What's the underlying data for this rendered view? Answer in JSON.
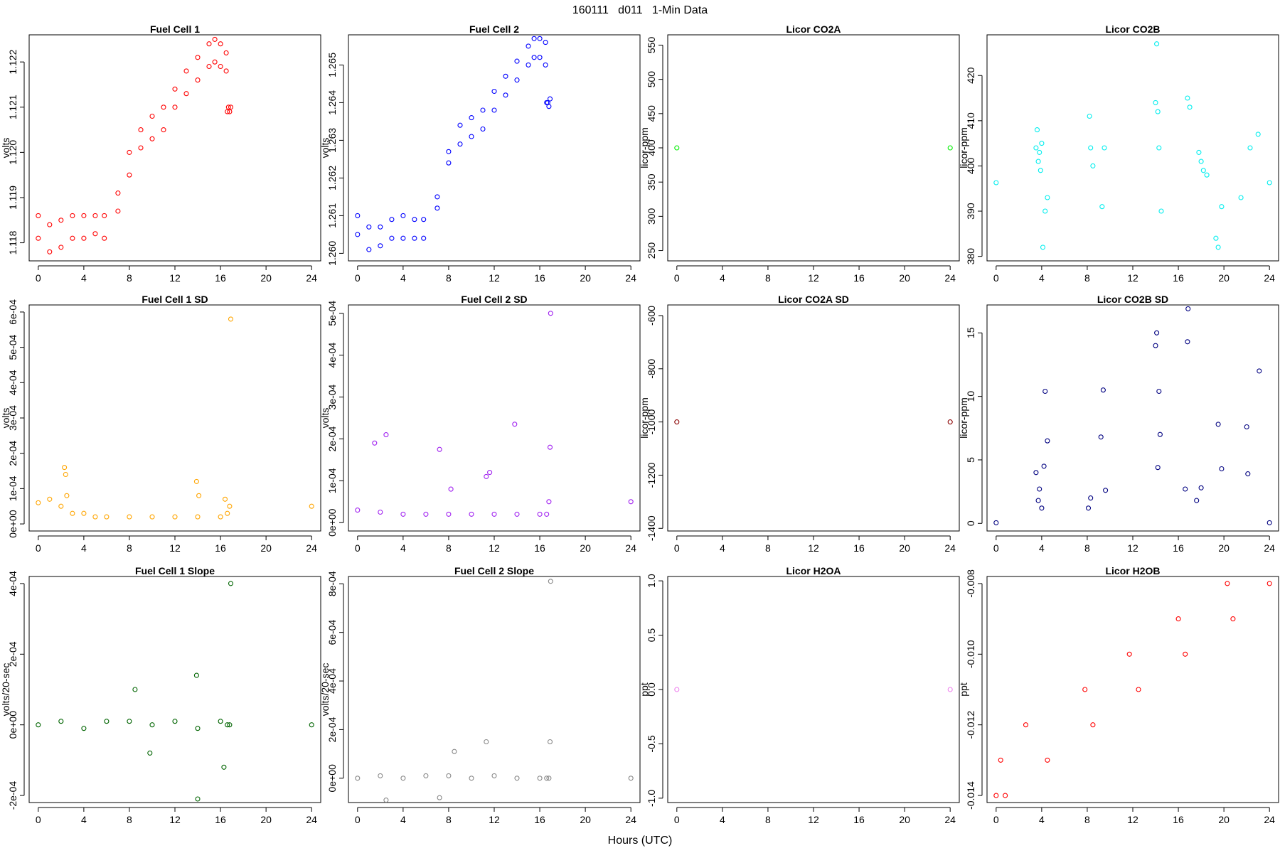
{
  "figure": {
    "title": "160111   d011   1-Min Data",
    "xlabel": "Hours (UTC)"
  },
  "chart_data": [
    {
      "type": "scatter",
      "title": "Fuel Cell 1",
      "ylabel": "volts",
      "xlabel": "",
      "color": "#ff0000",
      "xlim": [
        -0.8,
        24.8
      ],
      "ylim": [
        1.1176,
        1.1226
      ],
      "xticks": [
        0,
        4,
        8,
        12,
        16,
        20,
        24
      ],
      "yticks": [
        1.118,
        1.119,
        1.12,
        1.121,
        1.122
      ],
      "ytick_labels": [
        "1.118",
        "1.119",
        "1.120",
        "1.121",
        "1.122"
      ],
      "grid": false,
      "legend": "none",
      "series": [
        {
          "x": [
            0,
            1,
            2,
            3,
            4,
            5,
            5.8,
            7,
            8,
            9,
            10,
            11,
            12,
            13,
            14,
            15,
            15.5,
            16,
            16.5
          ],
          "y": [
            1.1181,
            1.1178,
            1.1179,
            1.1181,
            1.1181,
            1.1182,
            1.1181,
            1.1187,
            1.1195,
            1.1201,
            1.1203,
            1.1205,
            1.121,
            1.1213,
            1.1216,
            1.1219,
            1.122,
            1.1219,
            1.1218
          ]
        },
        {
          "x": [
            0,
            1,
            2,
            3,
            4,
            5,
            5.8,
            7,
            8,
            9,
            10,
            11,
            12,
            13,
            14,
            15,
            15.5,
            16,
            16.5
          ],
          "y": [
            1.1186,
            1.1184,
            1.1185,
            1.1186,
            1.1186,
            1.1186,
            1.1186,
            1.1191,
            1.12,
            1.1205,
            1.1208,
            1.121,
            1.1214,
            1.1218,
            1.1221,
            1.1224,
            1.1225,
            1.1224,
            1.1222
          ]
        },
        {
          "x": [
            16.6,
            16.7,
            16.8,
            16.9
          ],
          "y": [
            1.1209,
            1.121,
            1.1209,
            1.121
          ]
        }
      ]
    },
    {
      "type": "scatter",
      "title": "Fuel Cell 2",
      "ylabel": "volts",
      "xlabel": "",
      "color": "#0000ff",
      "xlim": [
        -0.8,
        24.8
      ],
      "ylim": [
        1.2598,
        1.2658
      ],
      "xticks": [
        0,
        4,
        8,
        12,
        16,
        20,
        24
      ],
      "yticks": [
        1.26,
        1.261,
        1.262,
        1.263,
        1.264,
        1.265
      ],
      "ytick_labels": [
        "1.260",
        "1.261",
        "1.262",
        "1.263",
        "1.264",
        "1.265"
      ],
      "grid": false,
      "legend": "none",
      "series": [
        {
          "x": [
            0,
            1,
            2,
            3,
            4,
            5,
            5.8,
            7,
            8,
            9,
            10,
            11,
            12,
            13,
            14,
            15,
            15.5,
            16,
            16.5
          ],
          "y": [
            1.2605,
            1.2601,
            1.2602,
            1.2604,
            1.2604,
            1.2604,
            1.2604,
            1.2612,
            1.2624,
            1.2629,
            1.2631,
            1.2633,
            1.2638,
            1.2642,
            1.2646,
            1.265,
            1.2652,
            1.2652,
            1.265
          ]
        },
        {
          "x": [
            0,
            1,
            2,
            3,
            4,
            5,
            5.8,
            7,
            8,
            9,
            10,
            11,
            12,
            13,
            14,
            15,
            15.5,
            16,
            16.5
          ],
          "y": [
            1.261,
            1.2607,
            1.2607,
            1.2609,
            1.261,
            1.2609,
            1.2609,
            1.2615,
            1.2627,
            1.2634,
            1.2636,
            1.2638,
            1.2643,
            1.2647,
            1.2651,
            1.2655,
            1.2657,
            1.2657,
            1.2656
          ]
        },
        {
          "x": [
            16.6,
            16.7,
            16.8,
            16.9
          ],
          "y": [
            1.264,
            1.264,
            1.2639,
            1.2641
          ]
        }
      ]
    },
    {
      "type": "scatter",
      "title": "Licor CO2A",
      "ylabel": "licor-ppm",
      "xlabel": "",
      "color": "#00ee00",
      "xlim": [
        -0.8,
        24.8
      ],
      "ylim": [
        235,
        565
      ],
      "xticks": [
        0,
        4,
        8,
        12,
        16,
        20,
        24
      ],
      "yticks": [
        250,
        300,
        350,
        400,
        450,
        500,
        550
      ],
      "ytick_labels": [
        "250",
        "300",
        "350",
        "400",
        "450",
        "500",
        "550"
      ],
      "grid": false,
      "legend": "none",
      "series": [
        {
          "x": [
            0,
            24
          ],
          "y": [
            400,
            400
          ]
        }
      ]
    },
    {
      "type": "scatter",
      "title": "Licor CO2B",
      "ylabel": "licor-ppm",
      "xlabel": "",
      "color": "#00eeee",
      "xlim": [
        -0.8,
        24.8
      ],
      "ylim": [
        379,
        429
      ],
      "xticks": [
        0,
        4,
        8,
        12,
        16,
        20,
        24
      ],
      "yticks": [
        380,
        390,
        400,
        410,
        420
      ],
      "ytick_labels": [
        "380",
        "390",
        "400",
        "410",
        "420"
      ],
      "grid": false,
      "legend": "none",
      "series": [
        {
          "x": [
            0,
            24
          ],
          "y": [
            396.3,
            396.3
          ]
        },
        {
          "x": [
            3.5,
            3.6,
            3.7,
            3.8,
            3.9,
            4.0,
            4.1,
            4.3,
            4.5,
            8.2,
            8.3,
            8.5,
            9.3,
            9.5,
            14.0,
            14.1,
            14.2,
            14.3,
            14.5,
            16.8,
            17.0,
            17.8,
            18.0,
            18.2,
            18.5,
            19.3,
            19.5,
            19.8,
            21.5,
            22.3,
            23.0
          ],
          "y": [
            404,
            408,
            401,
            403,
            399,
            405,
            382,
            390,
            393,
            411,
            404,
            400,
            391,
            404,
            414,
            427,
            412,
            404,
            390,
            415,
            413,
            403,
            401,
            399,
            398,
            384,
            382,
            391,
            393,
            404,
            407
          ]
        }
      ]
    },
    {
      "type": "scatter",
      "title": "Fuel Cell 1 SD",
      "ylabel": "volts",
      "xlabel": "",
      "color": "#ffa500",
      "xlim": [
        -0.8,
        24.8
      ],
      "ylim": [
        -2e-05,
        0.00062
      ],
      "xticks": [
        0,
        4,
        8,
        12,
        16,
        20,
        24
      ],
      "yticks": [
        0,
        0.0001,
        0.0002,
        0.0003,
        0.0004,
        0.0005,
        0.0006
      ],
      "ytick_labels": [
        "0e+00",
        "1e-04",
        "2e-04",
        "3e-04",
        "4e-04",
        "5e-04",
        "6e-04"
      ],
      "grid": false,
      "legend": "none",
      "series": [
        {
          "x": [
            0,
            1,
            2,
            2.5,
            3,
            4,
            5,
            6,
            8,
            10,
            12,
            14,
            16,
            16.6
          ],
          "y": [
            6e-05,
            7e-05,
            5e-05,
            8e-05,
            3e-05,
            3e-05,
            2e-05,
            2e-05,
            2e-05,
            2e-05,
            2e-05,
            2e-05,
            2e-05,
            3e-05
          ]
        },
        {
          "x": [
            16.8,
            24
          ],
          "y": [
            5e-05,
            5e-05
          ]
        },
        {
          "x": [
            2.3,
            2.4,
            13.9,
            14.1,
            16.4,
            16.9
          ],
          "y": [
            0.00016,
            0.00014,
            0.00012,
            8e-05,
            7e-05,
            0.00058
          ]
        }
      ]
    },
    {
      "type": "scatter",
      "title": "Fuel Cell 2 SD",
      "ylabel": "volts",
      "xlabel": "",
      "color": "#a020f0",
      "xlim": [
        -0.8,
        24.8
      ],
      "ylim": [
        -2e-05,
        0.00052
      ],
      "xticks": [
        0,
        4,
        8,
        12,
        16,
        20,
        24
      ],
      "yticks": [
        0,
        0.0001,
        0.0002,
        0.0003,
        0.0004,
        0.0005
      ],
      "ytick_labels": [
        "0e+00",
        "1e-04",
        "2e-04",
        "3e-04",
        "4e-04",
        "5e-04"
      ],
      "grid": false,
      "legend": "none",
      "series": [
        {
          "x": [
            0,
            2,
            4,
            6,
            8,
            10,
            12,
            14,
            16,
            16.6
          ],
          "y": [
            3e-05,
            2.5e-05,
            2e-05,
            2e-05,
            2e-05,
            2e-05,
            2e-05,
            2e-05,
            2e-05,
            2e-05
          ]
        },
        {
          "x": [
            16.8,
            24
          ],
          "y": [
            5e-05,
            5e-05
          ]
        },
        {
          "x": [
            1.5,
            2.5,
            7.2,
            8.2,
            11.3,
            11.6,
            13.8,
            16.9,
            16.95
          ],
          "y": [
            0.00019,
            0.00021,
            0.000175,
            8e-05,
            0.00011,
            0.00012,
            0.000235,
            0.00018,
            0.0005
          ]
        }
      ]
    },
    {
      "type": "scatter",
      "title": "Licor CO2A SD",
      "ylabel": "licor-ppm",
      "xlabel": "",
      "color": "#8b0000",
      "xlim": [
        -0.8,
        24.8
      ],
      "ylim": [
        -1410,
        -560
      ],
      "xticks": [
        0,
        4,
        8,
        12,
        16,
        20,
        24
      ],
      "yticks": [
        -1400,
        -1200,
        -1000,
        -800,
        -600
      ],
      "ytick_labels": [
        "-1400",
        "-1200",
        "-1000",
        "-800",
        "-600"
      ],
      "grid": false,
      "legend": "none",
      "series": [
        {
          "x": [
            0,
            24
          ],
          "y": [
            -1000,
            -1000
          ]
        }
      ]
    },
    {
      "type": "scatter",
      "title": "Licor CO2B SD",
      "ylabel": "licor-ppm",
      "xlabel": "",
      "color": "#000080",
      "xlim": [
        -0.8,
        24.8
      ],
      "ylim": [
        -0.6,
        17.2
      ],
      "xticks": [
        0,
        4,
        8,
        12,
        16,
        20,
        24
      ],
      "yticks": [
        0,
        5,
        10,
        15
      ],
      "ytick_labels": [
        "0",
        "5",
        "10",
        "15"
      ],
      "grid": false,
      "legend": "none",
      "series": [
        {
          "x": [
            0,
            24
          ],
          "y": [
            0.05,
            0.05
          ]
        },
        {
          "x": [
            3.5,
            3.7,
            3.8,
            4.0,
            4.2,
            4.3,
            4.5,
            8.1,
            8.3,
            9.2,
            9.4,
            9.6,
            14.0,
            14.1,
            14.2,
            14.3,
            14.4,
            16.6,
            16.8,
            17.6,
            18.0,
            19.5,
            19.8,
            22.0,
            22.1,
            23.1
          ],
          "y": [
            4.0,
            1.8,
            2.7,
            1.2,
            4.5,
            10.4,
            6.5,
            1.2,
            2.0,
            6.8,
            10.5,
            2.6,
            14.0,
            15.0,
            4.4,
            10.4,
            7.0,
            2.7,
            14.3,
            1.8,
            2.8,
            7.8,
            4.3,
            7.6,
            3.9,
            12.0
          ]
        },
        {
          "x": [
            16.85
          ],
          "y": [
            16.9
          ]
        }
      ]
    },
    {
      "type": "scatter",
      "title": "Fuel Cell 1 Slope",
      "ylabel": "volts/20-sec",
      "xlabel": "",
      "color": "#006400",
      "xlim": [
        -0.8,
        24.8
      ],
      "ylim": [
        -0.00022,
        0.00042
      ],
      "xticks": [
        0,
        4,
        8,
        12,
        16,
        20,
        24
      ],
      "yticks": [
        -0.0002,
        0,
        0.0002,
        0.0004
      ],
      "ytick_labels": [
        "-2e-04",
        "0e+00",
        "2e-04",
        "4e-04"
      ],
      "grid": false,
      "legend": "none",
      "series": [
        {
          "x": [
            0,
            2,
            4,
            6,
            8,
            10,
            12,
            14,
            16,
            16.6
          ],
          "y": [
            0,
            1e-05,
            -1e-05,
            1e-05,
            1e-05,
            0,
            1e-05,
            -1e-05,
            1e-05,
            0
          ]
        },
        {
          "x": [
            16.8,
            24
          ],
          "y": [
            0,
            0
          ]
        },
        {
          "x": [
            8.5,
            9.8,
            13.9,
            14.0,
            16.3,
            16.9
          ],
          "y": [
            0.0001,
            -8e-05,
            0.00014,
            -0.00021,
            -0.00012,
            0.0004
          ]
        }
      ]
    },
    {
      "type": "scatter",
      "title": "Fuel Cell 2 Slope",
      "ylabel": "volts/20-sec",
      "xlabel": "",
      "color": "#888888",
      "xlim": [
        -0.8,
        24.8
      ],
      "ylim": [
        -0.0001,
        0.00083
      ],
      "xticks": [
        0,
        4,
        8,
        12,
        16,
        20,
        24
      ],
      "yticks": [
        0,
        0.0002,
        0.0004,
        0.0006,
        0.0008
      ],
      "ytick_labels": [
        "0e+00",
        "2e-04",
        "4e-04",
        "6e-04",
        "8e-04"
      ],
      "grid": false,
      "legend": "none",
      "series": [
        {
          "x": [
            0,
            2,
            4,
            6,
            8,
            10,
            12,
            14,
            16,
            16.6
          ],
          "y": [
            0,
            1e-05,
            0,
            1e-05,
            1e-05,
            0,
            1e-05,
            0,
            0,
            0
          ]
        },
        {
          "x": [
            16.8,
            24
          ],
          "y": [
            0,
            0
          ]
        },
        {
          "x": [
            2.5,
            7.2,
            8.5,
            11.3,
            16.9,
            16.95
          ],
          "y": [
            -9e-05,
            -8e-05,
            0.00011,
            0.00015,
            0.00015,
            0.00081
          ]
        }
      ]
    },
    {
      "type": "scatter",
      "title": "Licor H2OA",
      "ylabel": "ppt",
      "xlabel": "",
      "color": "#ee82ee",
      "xlim": [
        -0.8,
        24.8
      ],
      "ylim": [
        -1.04,
        1.04
      ],
      "xticks": [
        0,
        4,
        8,
        12,
        16,
        20,
        24
      ],
      "yticks": [
        -1.0,
        -0.5,
        0,
        0.5,
        1.0
      ],
      "ytick_labels": [
        "-1.0",
        "-0.5",
        "0.0",
        "0.5",
        "1.0"
      ],
      "grid": false,
      "legend": "none",
      "series": [
        {
          "x": [
            0,
            24
          ],
          "y": [
            0,
            0
          ]
        }
      ]
    },
    {
      "type": "scatter",
      "title": "Licor H2OB",
      "ylabel": "ppt",
      "xlabel": "",
      "color": "#ff0000",
      "xlim": [
        -0.8,
        24.8
      ],
      "ylim": [
        -0.0142,
        -0.0078
      ],
      "xticks": [
        0,
        4,
        8,
        12,
        16,
        20,
        24
      ],
      "yticks": [
        -0.014,
        -0.012,
        -0.01,
        -0.008
      ],
      "ytick_labels": [
        "-0.014",
        "-0.012",
        "-0.010",
        "-0.008"
      ],
      "grid": false,
      "legend": "none",
      "series": [
        {
          "x": [
            0,
            0.8
          ],
          "y": [
            -0.014,
            -0.014
          ]
        },
        {
          "x": [
            0.4,
            4.5
          ],
          "y": [
            -0.013,
            -0.013
          ]
        },
        {
          "x": [
            2.6,
            8.5
          ],
          "y": [
            -0.012,
            -0.012
          ]
        },
        {
          "x": [
            7.8,
            12.5
          ],
          "y": [
            -0.011,
            -0.011
          ]
        },
        {
          "x": [
            11.7,
            16.6
          ],
          "y": [
            -0.01,
            -0.01
          ]
        },
        {
          "x": [
            16.0,
            20.8
          ],
          "y": [
            -0.009,
            -0.009
          ]
        },
        {
          "x": [
            20.3,
            24
          ],
          "y": [
            -0.008,
            -0.008
          ]
        }
      ]
    }
  ]
}
